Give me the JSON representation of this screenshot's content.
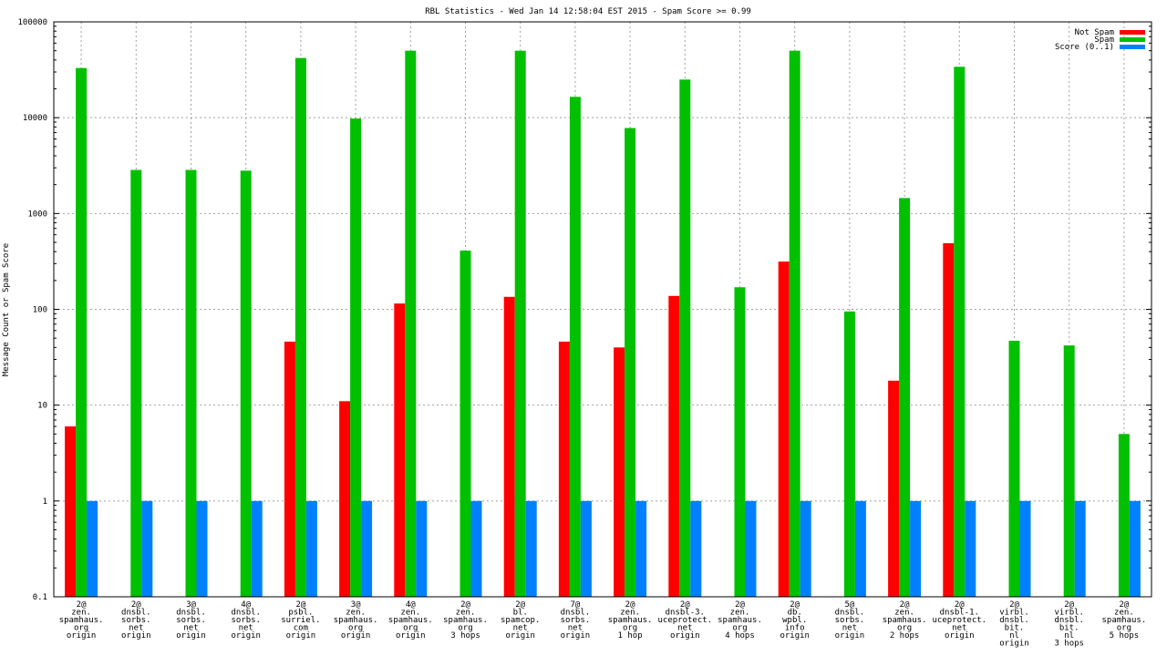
{
  "chart_data": {
    "type": "bar",
    "title": "RBL Statistics - Wed Jan 14 12:58:04 EST 2015 - Spam Score >= 0.99",
    "ylabel": "Message Count or Spam Score",
    "xlabel": "",
    "yscale": "log",
    "ylim": [
      0.1,
      100000
    ],
    "yticks": [
      "0.1",
      "1",
      "10",
      "100",
      "1000",
      "10000",
      "100000"
    ],
    "grid": true,
    "legend_position": "top-right",
    "categories": [
      [
        "2@",
        "zen.",
        "spamhaus.",
        "org",
        "origin"
      ],
      [
        "2@",
        "dnsbl.",
        "sorbs.",
        "net",
        "origin"
      ],
      [
        "3@",
        "dnsbl.",
        "sorbs.",
        "net",
        "origin"
      ],
      [
        "4@",
        "dnsbl.",
        "sorbs.",
        "net",
        "origin"
      ],
      [
        "2@",
        "psbl.",
        "surriel.",
        "com",
        "origin"
      ],
      [
        "3@",
        "zen.",
        "spamhaus.",
        "org",
        "origin"
      ],
      [
        "4@",
        "zen.",
        "spamhaus.",
        "org",
        "origin"
      ],
      [
        "2@",
        "zen.",
        "spamhaus.",
        "org",
        "3 hops"
      ],
      [
        "2@",
        "bl.",
        "spamcop.",
        "net",
        "origin"
      ],
      [
        "7@",
        "dnsbl.",
        "sorbs.",
        "net",
        "origin"
      ],
      [
        "2@",
        "zen.",
        "spamhaus.",
        "org",
        "1 hop"
      ],
      [
        "2@",
        "dnsbl-3.",
        "uceprotect.",
        "net",
        "origin"
      ],
      [
        "2@",
        "zen.",
        "spamhaus.",
        "org",
        "4 hops"
      ],
      [
        "2@",
        "db.",
        "wpbl.",
        "info",
        "origin"
      ],
      [
        "5@",
        "dnsbl.",
        "sorbs.",
        "net",
        "origin"
      ],
      [
        "2@",
        "zen.",
        "spamhaus.",
        "org",
        "2 hops"
      ],
      [
        "2@",
        "dnsbl-1.",
        "uceprotect.",
        "net",
        "origin"
      ],
      [
        "2@",
        "virbl.",
        "dnsbl.",
        "bit.",
        "nl",
        "origin"
      ],
      [
        "2@",
        "virbl.",
        "dnsbl.",
        "bit.",
        "nl",
        "3 hops"
      ],
      [
        "2@",
        "zen.",
        "spamhaus.",
        "org",
        "5 hops"
      ]
    ],
    "series": [
      {
        "name": "Not Spam",
        "color": "#ff0000",
        "values": [
          6,
          null,
          null,
          null,
          46,
          11,
          115,
          null,
          135,
          46,
          40,
          138,
          null,
          315,
          null,
          18,
          490,
          null,
          null,
          null
        ]
      },
      {
        "name": "Spam",
        "color": "#00c000",
        "values": [
          33000,
          2850,
          2850,
          2800,
          42000,
          9800,
          50000,
          410,
          50000,
          16500,
          7800,
          25000,
          170,
          50000,
          95,
          1450,
          34000,
          47,
          42,
          5
        ]
      },
      {
        "name": "Score (0..1)",
        "color": "#0080ff",
        "values": [
          1,
          1,
          1,
          1,
          1,
          1,
          1,
          1,
          1,
          1,
          1,
          1,
          1,
          1,
          1,
          1,
          1,
          1,
          1,
          1
        ]
      }
    ]
  }
}
